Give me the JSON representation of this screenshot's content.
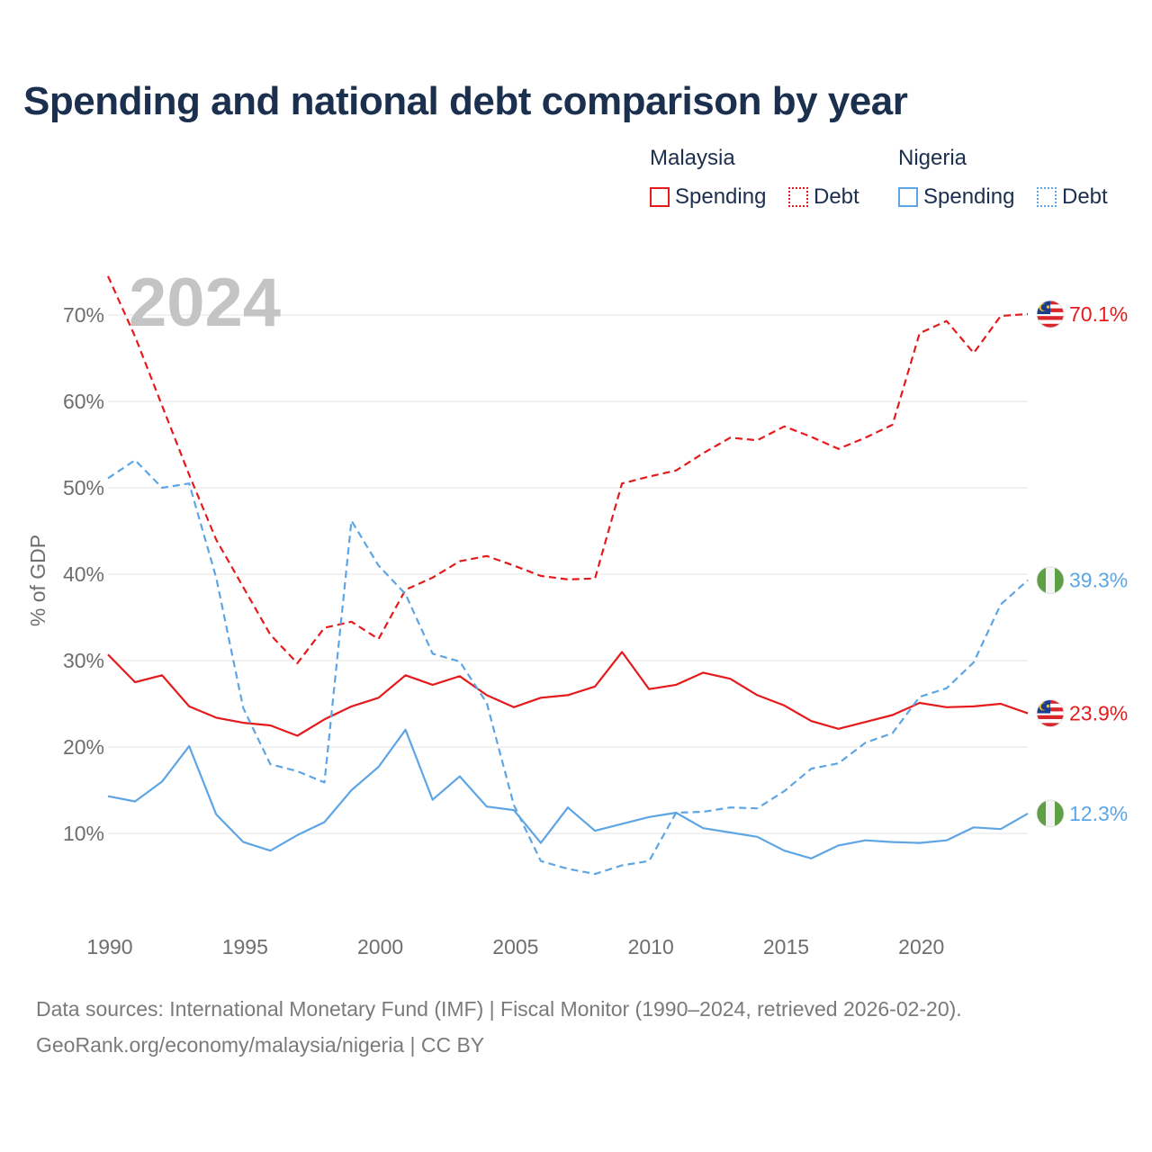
{
  "title": "Spending and national debt comparison by year",
  "legend": {
    "malaysia": {
      "title": "Malaysia",
      "spending": "Spending",
      "debt": "Debt",
      "color": "#e41a1c"
    },
    "nigeria": {
      "title": "Nigeria",
      "spending": "Spending",
      "debt": "Debt",
      "color": "#5da5e4"
    }
  },
  "footer": {
    "line1": "Data sources: International Monetary Fund (IMF) | Fiscal Monitor (1990–2024, retrieved 2026-02-20).",
    "line2": "GeoRank.org/economy/malaysia/nigeria | CC BY"
  },
  "chart_data": {
    "type": "line",
    "title": "Spending and national debt comparison by year",
    "year_label": "2024",
    "ylabel": "% of GDP",
    "xlabel": "",
    "xlim": [
      1990,
      2024
    ],
    "ylim": [
      0,
      75
    ],
    "yticks": [
      10,
      20,
      30,
      40,
      50,
      60,
      70
    ],
    "ytick_labels": [
      "10%",
      "20%",
      "30%",
      "40%",
      "50%",
      "60%",
      "70%"
    ],
    "xticks": [
      1990,
      1995,
      2000,
      2005,
      2010,
      2015,
      2020
    ],
    "xtick_labels": [
      "1990",
      "1995",
      "2000",
      "2005",
      "2010",
      "2015",
      "2020"
    ],
    "grid": true,
    "x": [
      1990,
      1991,
      1992,
      1993,
      1994,
      1995,
      1996,
      1997,
      1998,
      1999,
      2000,
      2001,
      2002,
      2003,
      2004,
      2005,
      2006,
      2007,
      2008,
      2009,
      2010,
      2011,
      2012,
      2013,
      2014,
      2015,
      2016,
      2017,
      2018,
      2019,
      2020,
      2021,
      2022,
      2023,
      2024
    ],
    "series": [
      {
        "name": "Malaysia Spending",
        "country": "Malaysia",
        "color": "#e41a1c",
        "dash": "solid",
        "end_label": "23.9%",
        "values": [
          30.7,
          27.5,
          28.3,
          24.7,
          23.4,
          22.8,
          22.5,
          21.3,
          23.2,
          24.7,
          25.7,
          28.3,
          27.2,
          28.2,
          26.0,
          24.6,
          25.7,
          26.0,
          27.0,
          31.0,
          26.7,
          27.2,
          28.6,
          27.9,
          26.0,
          24.8,
          23.0,
          22.1,
          22.9,
          23.7,
          25.1,
          24.6,
          24.7,
          25.0,
          23.9
        ]
      },
      {
        "name": "Malaysia Debt",
        "country": "Malaysia",
        "color": "#e41a1c",
        "dash": "dashed",
        "end_label": "70.1%",
        "values": [
          74.5,
          67.5,
          59.5,
          51.5,
          44.0,
          38.5,
          33.0,
          29.7,
          33.8,
          34.5,
          32.5,
          38.2,
          39.6,
          41.5,
          42.1,
          41.0,
          39.8,
          39.4,
          39.5,
          50.5,
          51.3,
          52.0,
          54.0,
          55.8,
          55.5,
          57.1,
          55.9,
          54.5,
          55.8,
          57.3,
          67.9,
          69.3,
          65.6,
          69.9,
          70.1
        ]
      },
      {
        "name": "Nigeria Spending",
        "country": "Nigeria",
        "color": "#5da5e4",
        "dash": "solid",
        "end_label": "12.3%",
        "values": [
          14.3,
          13.7,
          16.0,
          20.1,
          12.2,
          9.0,
          8.0,
          9.8,
          11.3,
          15.0,
          17.7,
          22.0,
          13.9,
          16.6,
          13.1,
          12.7,
          8.9,
          13.0,
          10.3,
          11.1,
          11.9,
          12.4,
          10.6,
          10.1,
          9.6,
          8.0,
          7.1,
          8.6,
          9.2,
          9.0,
          8.9,
          9.2,
          10.7,
          10.5,
          12.3
        ]
      },
      {
        "name": "Nigeria Debt",
        "country": "Nigeria",
        "color": "#5da5e4",
        "dash": "dashed",
        "end_label": "39.3%",
        "values": [
          51.1,
          53.2,
          50.0,
          50.5,
          39.6,
          24.5,
          18.0,
          17.2,
          15.9,
          46.2,
          41.0,
          37.7,
          30.8,
          29.9,
          25.1,
          13.3,
          6.8,
          5.9,
          5.3,
          6.3,
          6.8,
          12.4,
          12.5,
          13.0,
          12.9,
          14.9,
          17.5,
          18.1,
          20.5,
          21.6,
          25.8,
          26.8,
          29.8,
          36.5,
          39.3
        ]
      }
    ]
  }
}
